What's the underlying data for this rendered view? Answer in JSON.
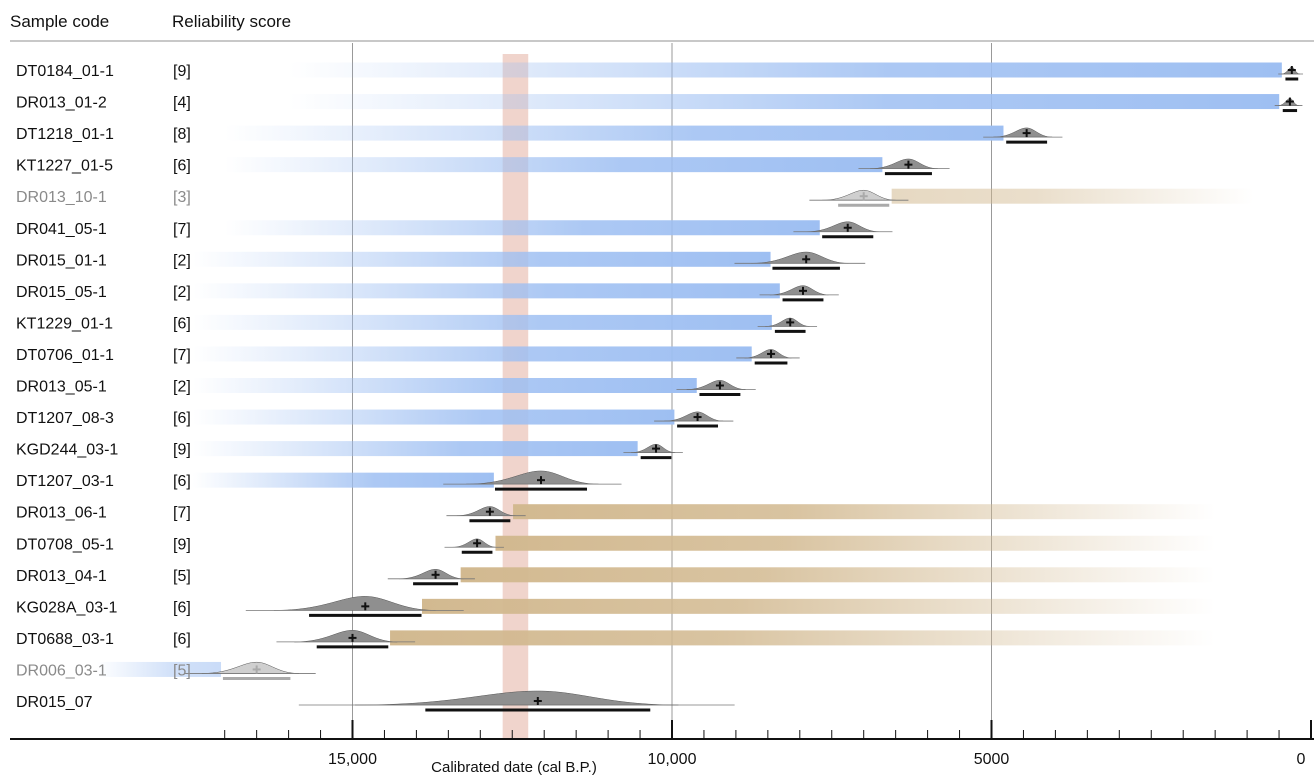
{
  "header": {
    "col_sample": "Sample code",
    "col_score": "Reliability score"
  },
  "colors": {
    "pre_bar": "#9ebff2",
    "post_bar": "#d2b990",
    "highlight_band": "#e2a99a",
    "distribution": "#8f8f8f",
    "distribution_dim": "#cfcfcf",
    "gridline": "#999999"
  },
  "chart_data": {
    "type": "range_bars_with_calibrated_dates",
    "xlabel": "Calibrated date (cal B.P.)",
    "x_reversed": true,
    "xlim": [
      20000,
      0
    ],
    "ticks": [
      {
        "value": 15000,
        "label": "15,000"
      },
      {
        "value": 10000,
        "label": "10,000"
      },
      {
        "value": 5000,
        "label": "5000"
      },
      {
        "value": 0,
        "label": "0"
      }
    ],
    "gridlines": [
      15000,
      10000,
      5000
    ],
    "highlight_band": [
      12650,
      12250
    ],
    "rows": [
      {
        "code": "DT0184_01-1",
        "score": "[9]",
        "kind": "pre",
        "date": 300,
        "spread": 60,
        "bar_to": 16000
      },
      {
        "code": "DR013_01-2",
        "score": "[4]",
        "kind": "pre",
        "date": 330,
        "spread": 70,
        "bar_to": 16000
      },
      {
        "code": "DT1218_01-1",
        "score": "[8]",
        "kind": "pre",
        "date": 4450,
        "spread": 200,
        "bar_to": 17000
      },
      {
        "code": "KT1227_01-5",
        "score": "[6]",
        "kind": "pre",
        "date": 6300,
        "spread": 230,
        "bar_to": 17000
      },
      {
        "code": "DR013_10-1",
        "score": "[3]",
        "kind": "post",
        "date": 7000,
        "spread": 250,
        "bar_to": 900,
        "dim": true
      },
      {
        "code": "DR041_05-1",
        "score": "[7]",
        "kind": "pre",
        "date": 7250,
        "spread": 250,
        "bar_to": 17000
      },
      {
        "code": "DR015_01-1",
        "score": "[2]",
        "kind": "pre",
        "date": 7900,
        "spread": 330,
        "bar_to": 17500
      },
      {
        "code": "DR015_05-1",
        "score": "[2]",
        "kind": "pre",
        "date": 7950,
        "spread": 200,
        "bar_to": 17500
      },
      {
        "code": "KT1229_01-1",
        "score": "[6]",
        "kind": "pre",
        "date": 8150,
        "spread": 150,
        "bar_to": 17500
      },
      {
        "code": "DT0706_01-1",
        "score": "[7]",
        "kind": "pre",
        "date": 8450,
        "spread": 160,
        "bar_to": 17500
      },
      {
        "code": "DR013_05-1",
        "score": "[2]",
        "kind": "pre",
        "date": 9250,
        "spread": 200,
        "bar_to": 17500
      },
      {
        "code": "DT1207_08-3",
        "score": "[6]",
        "kind": "pre",
        "date": 9600,
        "spread": 200,
        "bar_to": 17500
      },
      {
        "code": "KGD244_03-1",
        "score": "[9]",
        "kind": "pre",
        "date": 10250,
        "spread": 150,
        "bar_to": 17500
      },
      {
        "code": "DT1207_03-1",
        "score": "[6]",
        "kind": "pre",
        "date": 12050,
        "spread": 450,
        "bar_to": 17500
      },
      {
        "code": "DR013_06-1",
        "score": "[7]",
        "kind": "post",
        "date": 12850,
        "spread": 200,
        "bar_to": 1500
      },
      {
        "code": "DT0708_05-1",
        "score": "[9]",
        "kind": "post",
        "date": 13050,
        "spread": 150,
        "bar_to": 1500
      },
      {
        "code": "DR013_04-1",
        "score": "[5]",
        "kind": "post",
        "date": 13700,
        "spread": 220,
        "bar_to": 1500
      },
      {
        "code": "KG028A_03-1",
        "score": "[6]",
        "kind": "post",
        "date": 14800,
        "spread": 550,
        "bar_to": 1500
      },
      {
        "code": "DT0688_03-1",
        "score": "[6]",
        "kind": "post",
        "date": 15000,
        "spread": 350,
        "bar_to": 1500
      },
      {
        "code": "DR006_03-1",
        "score": "[5]",
        "kind": "pre",
        "date": 16500,
        "spread": 330,
        "bar_to": 19000,
        "dim": true
      },
      {
        "code": "DR015_07",
        "score": "",
        "kind": "none",
        "date": 12100,
        "spread": 1100,
        "bar_to": null
      }
    ]
  }
}
